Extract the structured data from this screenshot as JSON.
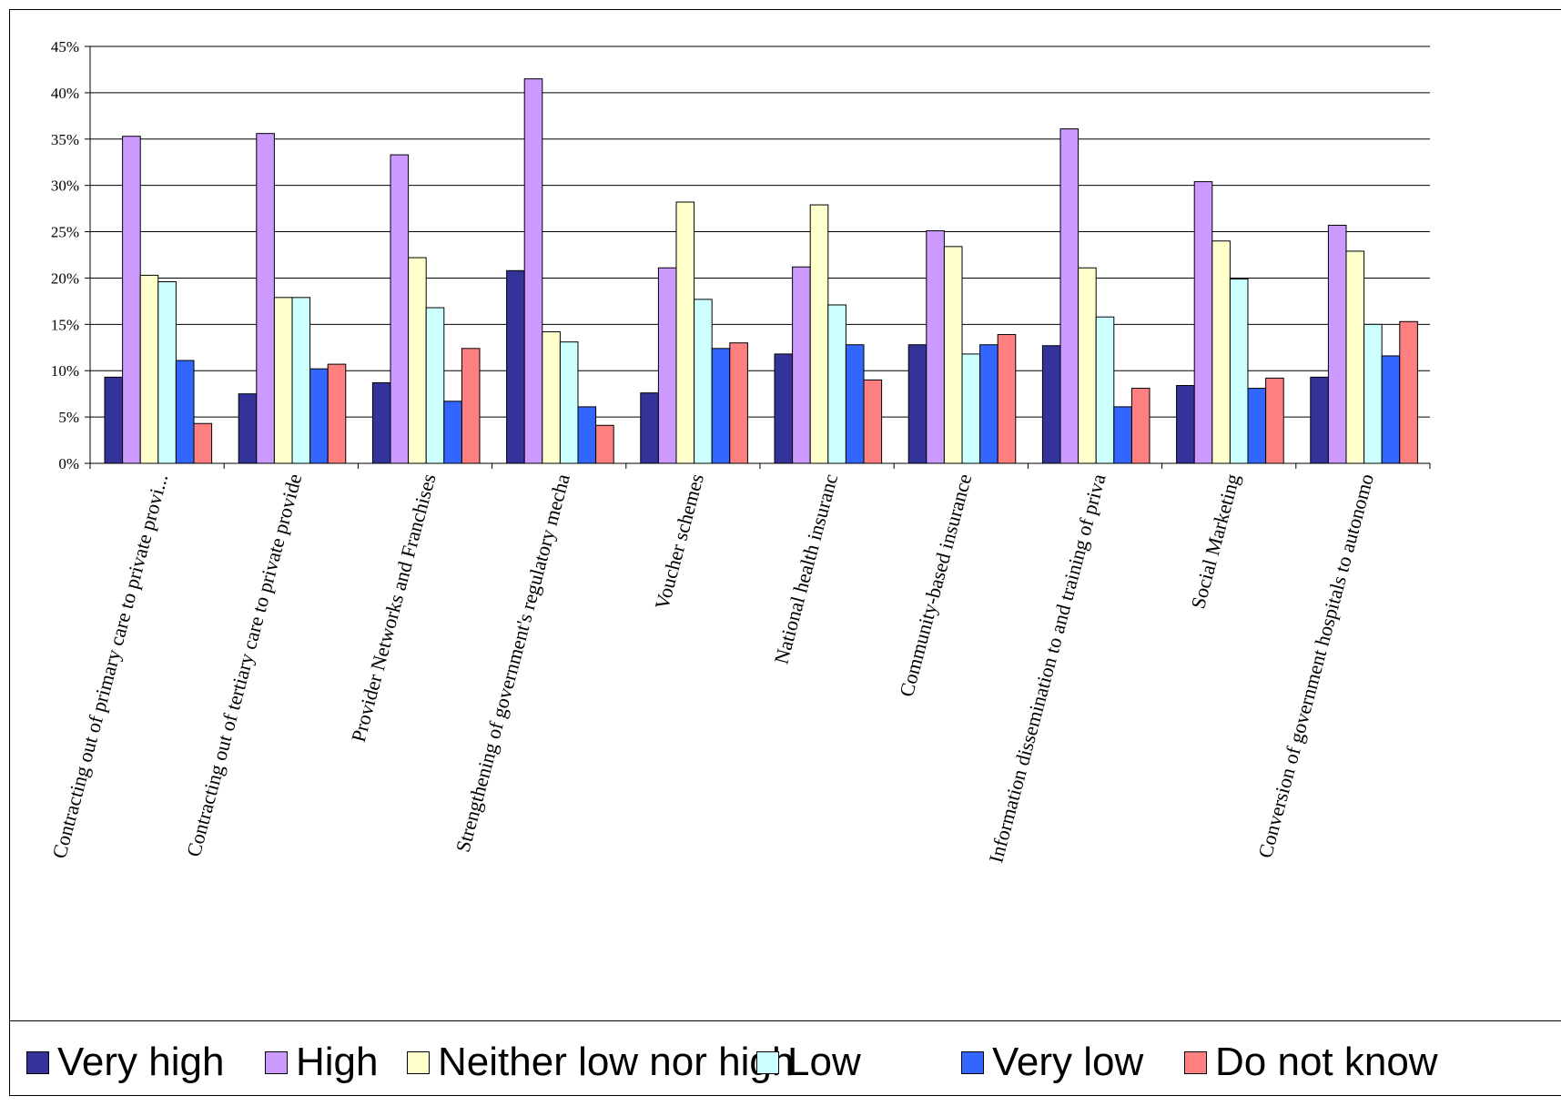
{
  "chart_data": {
    "type": "bar",
    "title": "",
    "xlabel": "",
    "ylabel": "",
    "ylim": [
      0,
      45
    ],
    "y_tick_labels": [
      "0%",
      "5%",
      "10%",
      "15%",
      "20%",
      "25%",
      "30%",
      "35%",
      "40%",
      "45%"
    ],
    "grid": true,
    "legend_position": "bottom",
    "categories": [
      "Contracting out of primary care to private provi...",
      "Contracting out of tertiary care to private provide",
      "Provider Networks and Franchises",
      "Strengthening of government's regulatory mecha",
      "Voucher schemes",
      "National health insuranc",
      "Community-based insurance",
      "Information dissemination to and training of priva",
      "Social Marketing",
      "Conversion of government hospitals to autonomo"
    ],
    "series": [
      {
        "name": "Very high",
        "color": "#333399",
        "values": [
          9.3,
          7.5,
          8.7,
          20.8,
          7.6,
          11.8,
          12.8,
          12.7,
          8.4,
          9.3
        ]
      },
      {
        "name": "High",
        "color": "#cc99ff",
        "values": [
          35.3,
          35.6,
          33.3,
          41.5,
          21.1,
          21.2,
          25.1,
          36.1,
          30.4,
          25.7
        ]
      },
      {
        "name": "Neither low nor high",
        "color": "#ffffcc",
        "values": [
          20.3,
          17.9,
          22.2,
          14.2,
          28.2,
          27.9,
          23.4,
          21.1,
          24.0,
          22.9
        ]
      },
      {
        "name": "Low",
        "color": "#ccffff",
        "values": [
          19.6,
          17.9,
          16.8,
          13.1,
          17.7,
          17.1,
          11.8,
          15.8,
          19.9,
          15.0
        ]
      },
      {
        "name": "Very low",
        "color": "#3366ff",
        "values": [
          11.1,
          10.2,
          6.7,
          6.1,
          12.4,
          12.8,
          12.8,
          6.1,
          8.1,
          11.6
        ]
      },
      {
        "name": "Do not know",
        "color": "#ff8080",
        "values": [
          4.3,
          10.7,
          12.4,
          4.1,
          13.0,
          9.0,
          13.9,
          8.1,
          9.2,
          15.3
        ]
      }
    ]
  }
}
